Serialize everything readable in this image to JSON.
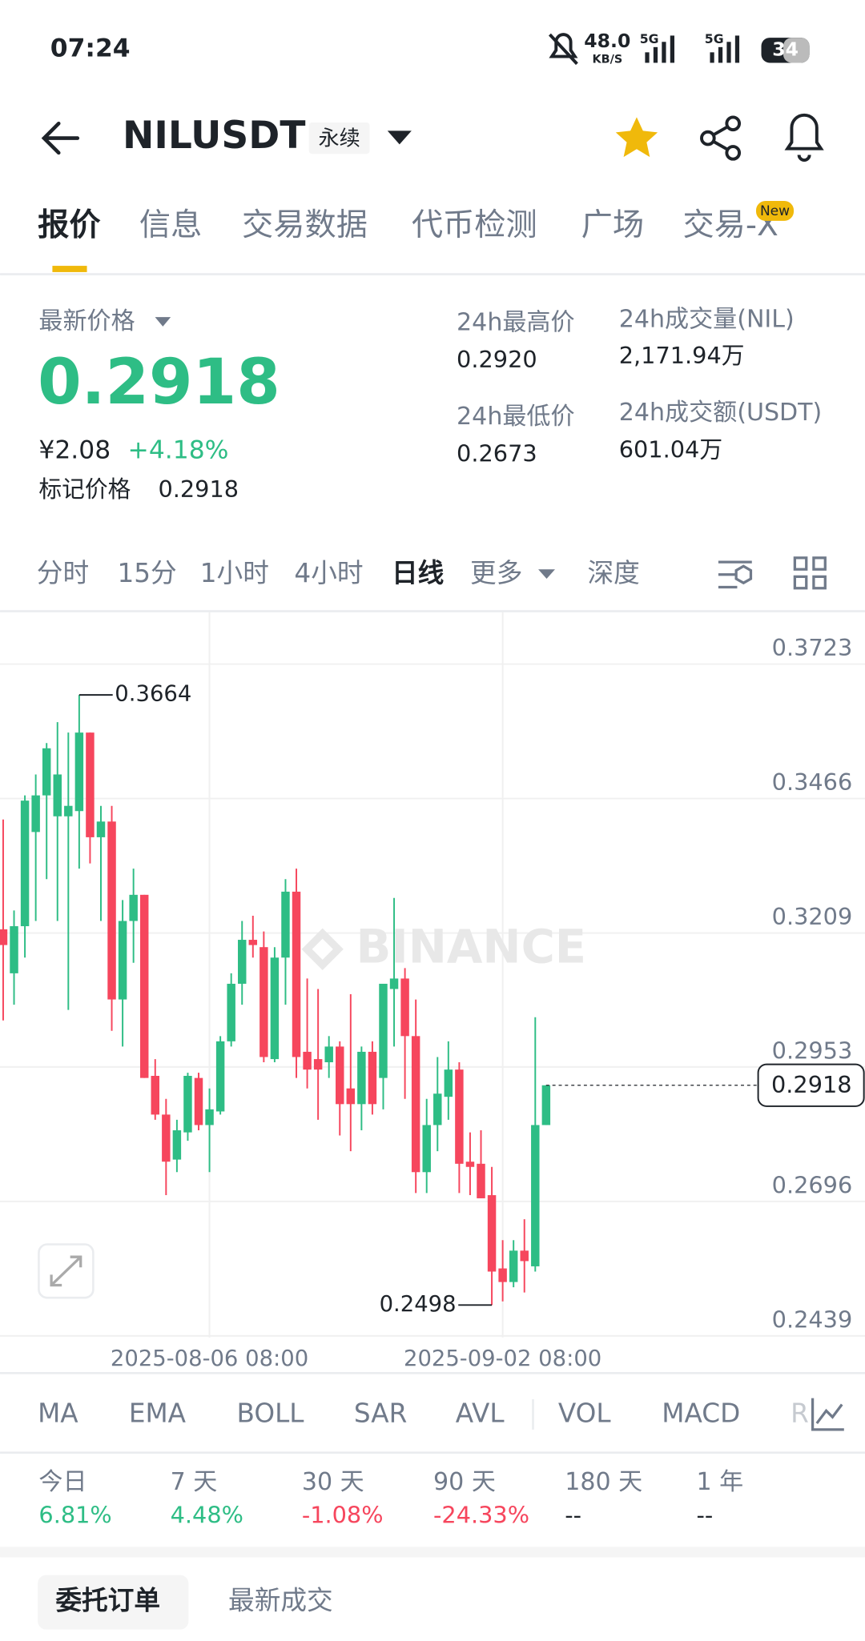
{
  "status_bar": {
    "time": "07:24",
    "net_speed": "48.0",
    "net_unit": "KB/S",
    "signal_1": "5G",
    "signal_2": "5G",
    "battery": "34"
  },
  "header": {
    "symbol": "NILUSDT",
    "tag": "永续"
  },
  "tabs": {
    "items": [
      "报价",
      "信息",
      "交易数据",
      "代币检测",
      "广场",
      "交易-X"
    ],
    "badge": "New"
  },
  "price": {
    "label": "最新价格",
    "last": "0.2918",
    "cny": "¥2.08",
    "change": "+4.18%",
    "mark_label": "标记价格",
    "mark": "0.2918"
  },
  "stats": [
    {
      "label": "24h最高价",
      "value": "0.2920"
    },
    {
      "label": "24h成交量(NIL)",
      "value": "2,171.94万"
    },
    {
      "label": "24h最低价",
      "value": "0.2673"
    },
    {
      "label": "24h成交额(USDT)",
      "value": "601.04万"
    }
  ],
  "intervals": [
    "分时",
    "15分",
    "1小时",
    "4小时",
    "日线",
    "更多",
    "深度"
  ],
  "watermark": "BINANCE",
  "chart_data": {
    "type": "candlestick",
    "categories": [
      null,
      null,
      null,
      null,
      null,
      null,
      null,
      null,
      null,
      null,
      null,
      null,
      null,
      null,
      null,
      null,
      null,
      null,
      null,
      "2025-08-06 08:00",
      null,
      null,
      null,
      null,
      null,
      null,
      null,
      null,
      null,
      null,
      null,
      null,
      null,
      null,
      null,
      null,
      null,
      null,
      null,
      null,
      null,
      null,
      null,
      null,
      null,
      null,
      "2025-09-02 08:00",
      null,
      null,
      null,
      null
    ],
    "open": [
      0.3216,
      0.3132,
      0.3222,
      0.3402,
      0.3472,
      0.3432,
      0.3432,
      0.3442,
      0.3592,
      0.3392,
      0.3422,
      0.3082,
      0.3232,
      0.3282,
      0.2936,
      0.2862,
      0.2776,
      0.2828,
      0.2932,
      0.2842,
      0.2868,
      0.3002,
      0.3112,
      0.3196,
      0.3182,
      0.2968,
      0.3162,
      0.3288,
      0.2982,
      0.2968,
      0.2962,
      0.2992,
      0.2912,
      0.2882,
      0.2982,
      0.2932,
      0.3102,
      0.3122,
      0.3012,
      0.2752,
      0.2842,
      0.2896,
      0.2948,
      0.2772,
      0.2768,
      0.2708,
      0.2568,
      0.2542,
      0.2602,
      0.2572,
      0.2842
    ],
    "high": [
      0.3426,
      0.3252,
      0.3472,
      0.3512,
      0.3572,
      0.3612,
      0.3592,
      0.3664,
      0.3592,
      0.3452,
      0.3452,
      0.3272,
      0.3332,
      0.3282,
      0.2968,
      0.2892,
      0.2852,
      0.2942,
      0.2942,
      0.2912,
      0.3012,
      0.3132,
      0.3232,
      0.3242,
      0.3212,
      0.3182,
      0.3312,
      0.3332,
      0.3122,
      0.3102,
      0.3012,
      0.3002,
      0.3092,
      0.2992,
      0.3002,
      0.3112,
      0.3276,
      0.3142,
      0.3082,
      0.2892,
      0.2972,
      0.3002,
      0.2962,
      0.2828,
      0.2832,
      0.2762,
      0.2622,
      0.2622,
      0.2662,
      0.3048,
      0.2918
    ],
    "low": [
      0.3042,
      0.3072,
      0.3162,
      0.3232,
      0.3312,
      0.3232,
      0.3062,
      0.3332,
      0.3342,
      0.3232,
      0.3022,
      0.2992,
      0.3152,
      0.2932,
      0.2852,
      0.2708,
      0.2752,
      0.2812,
      0.2832,
      0.2752,
      0.2862,
      0.2992,
      0.3072,
      0.3162,
      0.2962,
      0.2962,
      0.3072,
      0.2932,
      0.2912,
      0.2852,
      0.2932,
      0.2822,
      0.2792,
      0.2832,
      0.2862,
      0.2872,
      0.2992,
      0.2892,
      0.2712,
      0.2712,
      0.2792,
      0.2852,
      0.2712,
      0.2708,
      0.2702,
      0.2498,
      0.2505,
      0.2532,
      0.2522,
      0.2562,
      0.2842
    ],
    "close": [
      0.3186,
      0.3222,
      0.3462,
      0.3472,
      0.3562,
      0.3512,
      0.3452,
      0.3592,
      0.3392,
      0.3422,
      0.3082,
      0.3232,
      0.3282,
      0.2932,
      0.2862,
      0.2772,
      0.2832,
      0.2936,
      0.2842,
      0.2872,
      0.3002,
      0.3112,
      0.3196,
      0.3186,
      0.2972,
      0.3162,
      0.3288,
      0.2972,
      0.2948,
      0.2948,
      0.2992,
      0.2882,
      0.2882,
      0.2982,
      0.2882,
      0.3112,
      0.3122,
      0.3012,
      0.2752,
      0.2842,
      0.2902,
      0.2948,
      0.2768,
      0.2762,
      0.2702,
      0.2562,
      0.2542,
      0.2602,
      0.2582,
      0.2842,
      0.2918
    ],
    "up_color": "#2ebd85",
    "down_color": "#f6465d",
    "ylim": [
      0.2436,
      0.3822
    ],
    "yticks": [
      0.3723,
      0.3466,
      0.3209,
      0.2953,
      0.2696,
      0.2439
    ],
    "grid": true
  },
  "indicators": [
    "MA",
    "EMA",
    "BOLL",
    "SAR",
    "AVL",
    "VOL",
    "MACD",
    "R"
  ],
  "performance": [
    {
      "period": "今日",
      "value": "6.81%",
      "color": "#2ebd85"
    },
    {
      "period": "7 天",
      "value": "4.48%",
      "color": "#2ebd85"
    },
    {
      "period": "30 天",
      "value": "-1.08%",
      "color": "#f6465d"
    },
    {
      "period": "90 天",
      "value": "-24.33%",
      "color": "#f6465d"
    },
    {
      "period": "180 天",
      "value": "--",
      "color": "#1e2329"
    },
    {
      "period": "1 年",
      "value": "--",
      "color": "#1e2329"
    }
  ],
  "bottom_tabs": [
    "委托订单",
    "最新成交"
  ]
}
